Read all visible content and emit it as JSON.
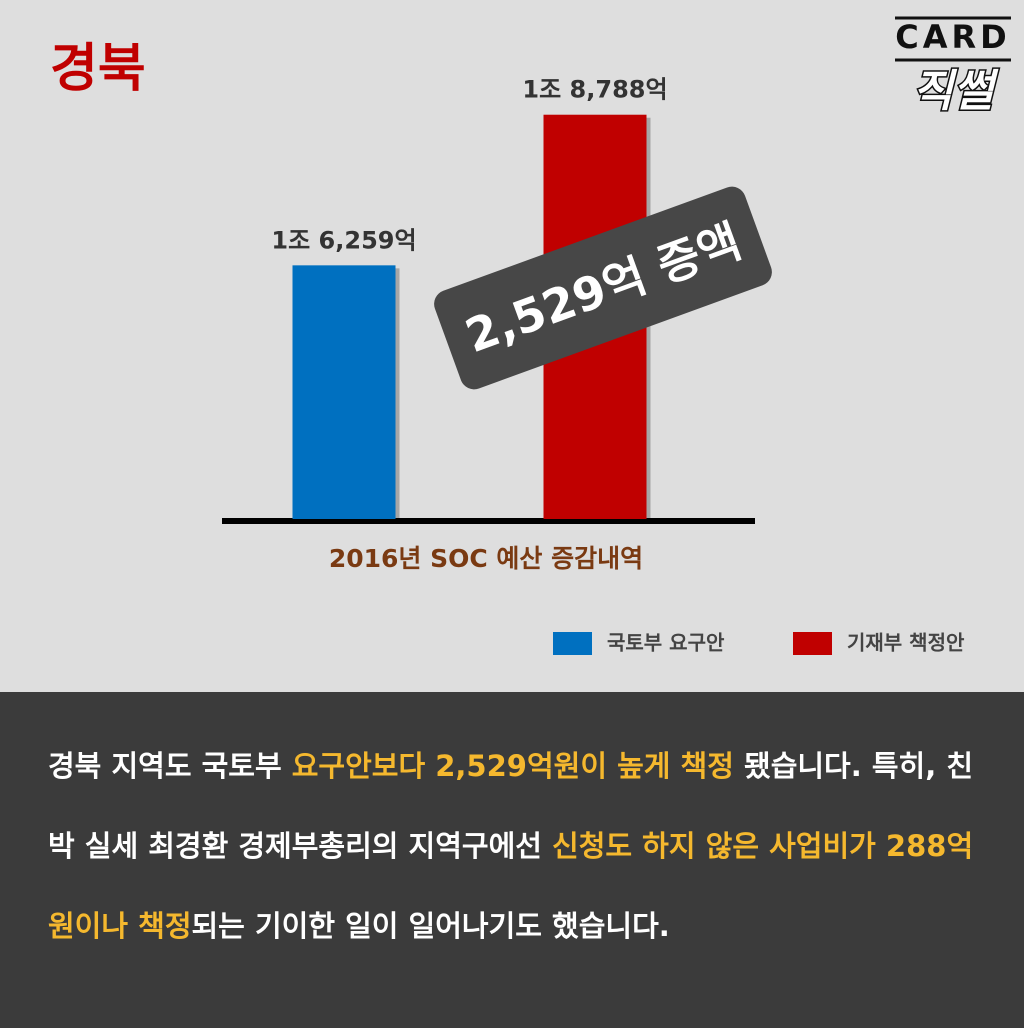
{
  "chart_data": {
    "type": "bar",
    "title": "경북",
    "x_label": "2016년 SOC 예산 증감내역",
    "categories": [
      null
    ],
    "series": [
      {
        "name": "국토부 요구안",
        "color": "#0070c0",
        "values": [
          16259
        ],
        "value_labels": [
          "1조 6,259억"
        ]
      },
      {
        "name": "기재부 책정안",
        "color": "#c00000",
        "values": [
          18788
        ],
        "value_labels": [
          "1조 8,788억"
        ]
      }
    ],
    "ylim": [
      12000,
      18800
    ],
    "annotation": "2,529억 증액",
    "legend": "bottom-right"
  },
  "logo": {
    "top": "CARD",
    "bottom": "직썰"
  },
  "body": {
    "segments": [
      {
        "text": "경북 지역도 국토부 ",
        "highlight": false
      },
      {
        "text": "요구안보다 2,529억원이 높게 책정",
        "highlight": true
      },
      {
        "text": " 됐습니다. 특히, 친박 실세 최경환 경제부총리의 지역구에선 ",
        "highlight": false
      },
      {
        "text": "신청도 하지 않은 사업비가 288억원이나 책정",
        "highlight": true
      },
      {
        "text": "되는 기이한 일이 일어나기도 했습니다.",
        "highlight": false
      }
    ]
  }
}
